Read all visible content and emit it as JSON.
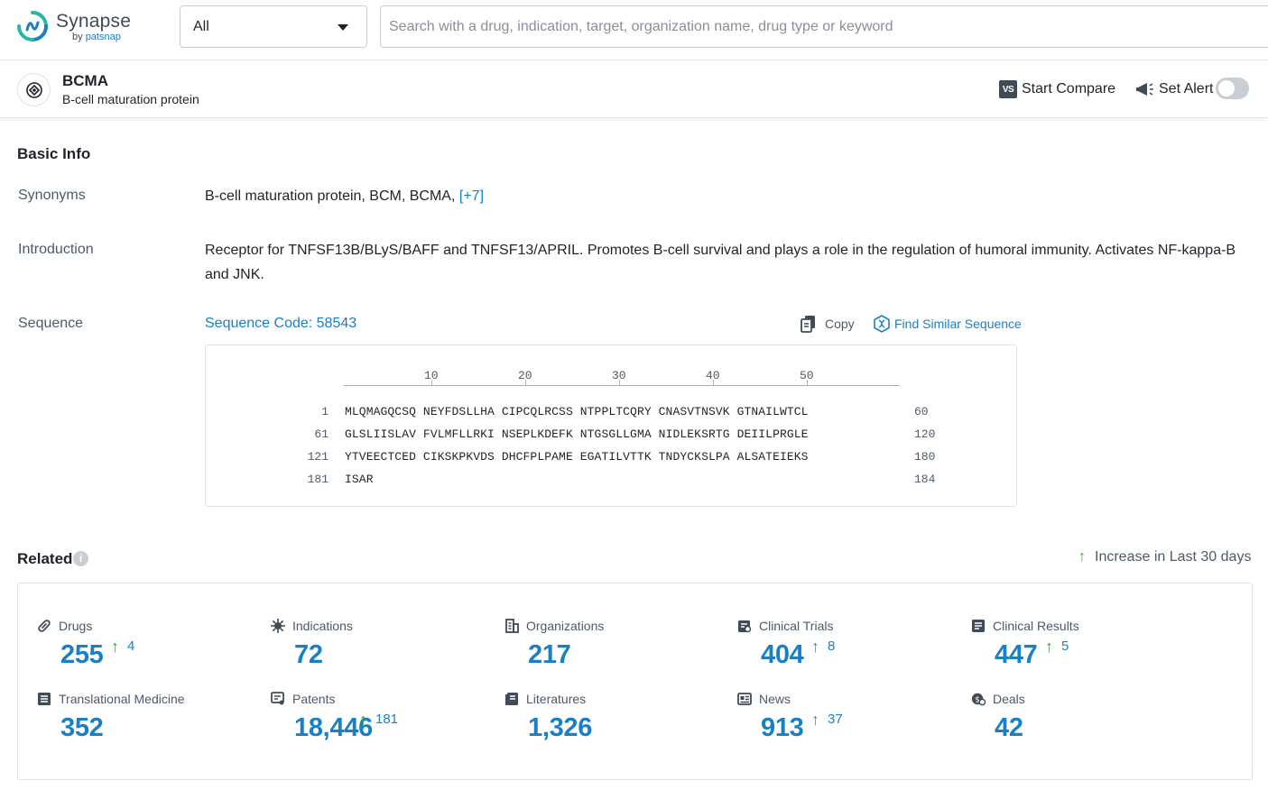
{
  "app": {
    "logo_name": "Synapse",
    "logo_sub_by": "by",
    "logo_sub_brand": "patsnap",
    "colors": {
      "accent": "#1a80c5",
      "increase": "#3aa63a",
      "logo_teal": "#2bb5a7"
    }
  },
  "search": {
    "scope_value": "All",
    "placeholder": "Search with a drug, indication, target, organization name, drug type or keyword"
  },
  "entity": {
    "name": "BCMA",
    "full_name": "B-cell maturation protein",
    "compare_icon_text": "VS",
    "compare_label": "Start Compare",
    "alert_label": "Set Alert",
    "alert_enabled": false
  },
  "basic_info": {
    "title": "Basic Info",
    "synonyms_label": "Synonyms",
    "synonyms_value": "B-cell maturation protein, BCM, BCMA,",
    "synonyms_more": "[+7]",
    "intro_label": "Introduction",
    "intro_value": "Receptor for TNFSF13B/BLyS/BAFF and TNFSF13/APRIL. Promotes B-cell survival and plays a role in the regulation of humoral immunity. Activates NF-kappa-B and JNK.",
    "sequence_label": "Sequence",
    "sequence_code": "Sequence Code: 58543",
    "copy_label": "Copy",
    "find_similar_label": "Find Similar Sequence",
    "ruler_ticks": [
      "10",
      "20",
      "30",
      "40",
      "50"
    ],
    "rows": [
      {
        "start": "1",
        "seq": "MLQMAGQCSQ NEYFDSLLHA CIPCQLRCSS NTPPLTCQRY CNASVTNSVK GTNAILWTCL",
        "end": "60"
      },
      {
        "start": "61",
        "seq": "GLSLIISLAV FVLMFLLRKI NSEPLKDEFK NTGSGLLGMA NIDLEKSRTG DEIILPRGLE",
        "end": "120"
      },
      {
        "start": "121",
        "seq": "YTVEECTCED CIKSKPKVDS DHCFPLPAME EGATILVTTK TNDYCKSLPA ALSATEIEKS",
        "end": "180"
      },
      {
        "start": "181",
        "seq": "ISAR",
        "end": "184"
      }
    ]
  },
  "related": {
    "title": "Related",
    "info_icon": "i",
    "increase_label": "Increase in Last 30 days",
    "increase_arrow": "↑",
    "stats": [
      {
        "label": "Drugs",
        "icon": "pill-icon",
        "value": "255",
        "increase": "4"
      },
      {
        "label": "Indications",
        "icon": "virus-icon",
        "value": "72",
        "increase": ""
      },
      {
        "label": "Organizations",
        "icon": "building-icon",
        "value": "217",
        "increase": ""
      },
      {
        "label": "Clinical Trials",
        "icon": "clipboard-icon",
        "value": "404",
        "increase": "8"
      },
      {
        "label": "Clinical Results",
        "icon": "report-icon",
        "value": "447",
        "increase": "5"
      },
      {
        "label": "Translational Medicine",
        "icon": "document-icon",
        "value": "352",
        "increase": ""
      },
      {
        "label": "Patents",
        "icon": "patent-icon",
        "value": "18,446",
        "increase": "181"
      },
      {
        "label": "Literatures",
        "icon": "book-icon",
        "value": "1,326",
        "increase": ""
      },
      {
        "label": "News",
        "icon": "newspaper-icon",
        "value": "913",
        "increase": "37"
      },
      {
        "label": "Deals",
        "icon": "handshake-icon",
        "value": "42",
        "increase": ""
      }
    ]
  }
}
